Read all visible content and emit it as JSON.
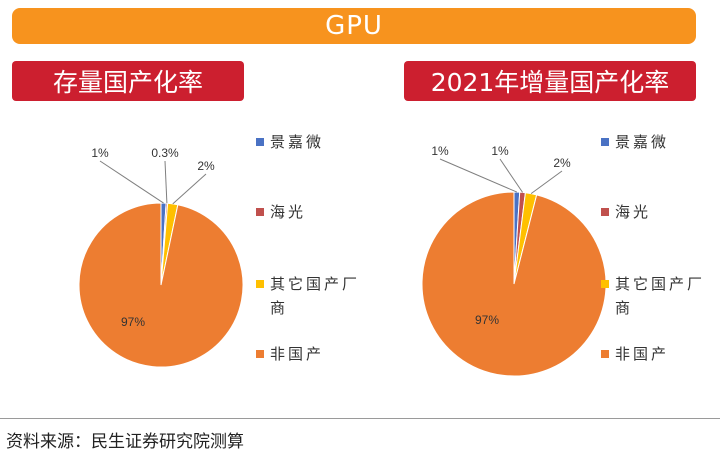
{
  "header": {
    "title": "GPU"
  },
  "charts": {
    "left_title": "存量国产化率",
    "right_title": "2021年增量国产化率"
  },
  "legend": [
    {
      "label": "景嘉微",
      "color": "#4a72c4"
    },
    {
      "label": "海光",
      "color": "#c0504d"
    },
    {
      "label": "其它国产厂商",
      "color": "#ffc000"
    },
    {
      "label": "非国产",
      "color": "#ed7d31"
    }
  ],
  "chart_data": [
    {
      "type": "pie",
      "title": "存量国产化率",
      "labels": [
        "景嘉微",
        "海光",
        "其它国产厂商",
        "非国产"
      ],
      "values": [
        1,
        0.3,
        2,
        97
      ],
      "value_labels": [
        "1%",
        "0.3%",
        "2%",
        "97%"
      ],
      "colors": [
        "#4a72c4",
        "#c0504d",
        "#ffc000",
        "#ed7d31"
      ]
    },
    {
      "type": "pie",
      "title": "2021年增量国产化率",
      "labels": [
        "景嘉微",
        "海光",
        "其它国产厂商",
        "非国产"
      ],
      "values": [
        1,
        1,
        2,
        97
      ],
      "value_labels": [
        "1%",
        "1%",
        "2%",
        "97%"
      ],
      "colors": [
        "#4a72c4",
        "#c0504d",
        "#ffc000",
        "#ed7d31"
      ]
    }
  ],
  "footer": {
    "source": "资料来源：民生证券研究院测算"
  }
}
